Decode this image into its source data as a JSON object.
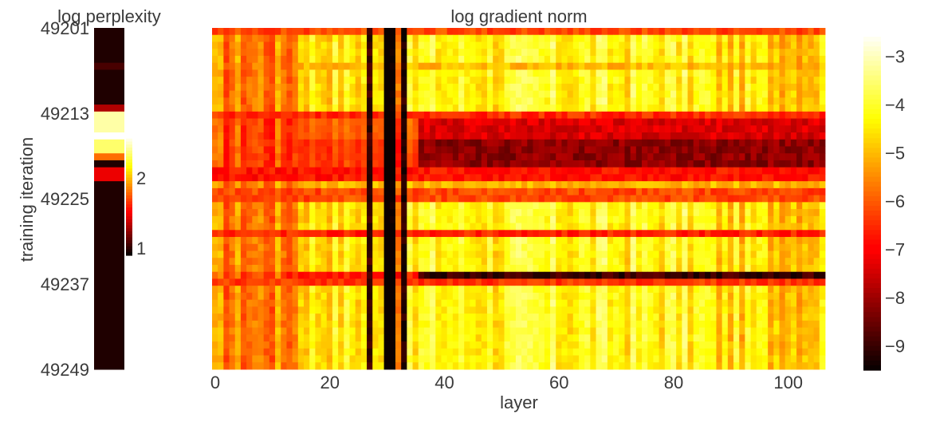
{
  "chart_data": [
    {
      "type": "heatmap",
      "title": "log perplexity",
      "ylabel": "training iteration",
      "yticks": [
        "49201",
        "49213",
        "49225",
        "49237",
        "49249"
      ],
      "iterations": [
        49201,
        49249
      ],
      "colormap": "hot",
      "colorbar": {
        "ticks": [
          "1",
          "2"
        ],
        "range": [
          0.9,
          2.6
        ]
      },
      "rows": [
        {
          "start": 49201,
          "end": 49205,
          "value": 0.95
        },
        {
          "start": 49206,
          "end": 49206,
          "value": 1.05
        },
        {
          "start": 49207,
          "end": 49211,
          "value": 0.95
        },
        {
          "start": 49212,
          "end": 49212,
          "value": 1.3
        },
        {
          "start": 49213,
          "end": 49215,
          "value": 2.45
        },
        {
          "start": 49216,
          "end": 49216,
          "value": 2.6
        },
        {
          "start": 49217,
          "end": 49218,
          "value": 2.35
        },
        {
          "start": 49219,
          "end": 49219,
          "value": 1.8
        },
        {
          "start": 49220,
          "end": 49220,
          "value": 0.95
        },
        {
          "start": 49221,
          "end": 49222,
          "value": 1.45
        },
        {
          "start": 49223,
          "end": 49249,
          "value": 0.95
        }
      ]
    },
    {
      "type": "heatmap",
      "title": "log gradient norm",
      "xlabel": "layer",
      "xticks": [
        "0",
        "20",
        "40",
        "60",
        "80",
        "100"
      ],
      "xlim": [
        0,
        107
      ],
      "iterations": [
        49201,
        49249
      ],
      "colormap": "hot",
      "colorbar": {
        "ticks": [
          "−3",
          "−4",
          "−5",
          "−6",
          "−7",
          "−8",
          "−9"
        ],
        "range": [
          -9.5,
          -2.5
        ]
      },
      "column_bands": [
        {
          "start": 0,
          "end": 15,
          "value": -5.6
        },
        {
          "start": 15,
          "end": 27,
          "value": -4.4
        },
        {
          "start": 27,
          "end": 28,
          "value": -8.8
        },
        {
          "start": 28,
          "end": 30,
          "value": -4.8
        },
        {
          "start": 30,
          "end": 32,
          "value": -9.2
        },
        {
          "start": 32,
          "end": 33,
          "value": -5.5
        },
        {
          "start": 33,
          "end": 34,
          "value": -8.6
        },
        {
          "start": 34,
          "end": 36,
          "value": -4.5
        },
        {
          "start": 36,
          "end": 87,
          "value": -4.2
        },
        {
          "start": 87,
          "end": 107,
          "value": -4.6
        }
      ],
      "row_bands": [
        {
          "start": 49201,
          "end": 49201,
          "value": -6.2
        },
        {
          "start": 49206,
          "end": 49206,
          "value": -5.0
        },
        {
          "start": 49213,
          "end": 49213,
          "value": -6.5
        },
        {
          "start": 49214,
          "end": 49216,
          "value": -7.4
        },
        {
          "start": 49217,
          "end": 49220,
          "value": -8.2
        },
        {
          "start": 49221,
          "end": 49222,
          "value": -6.8
        },
        {
          "start": 49223,
          "end": 49223,
          "value": -5.0
        },
        {
          "start": 49224,
          "end": 49225,
          "value": -6.2
        },
        {
          "start": 49230,
          "end": 49230,
          "value": -6.6
        },
        {
          "start": 49236,
          "end": 49236,
          "value": -9.0
        },
        {
          "start": 49237,
          "end": 49237,
          "value": -6.4
        }
      ]
    }
  ]
}
